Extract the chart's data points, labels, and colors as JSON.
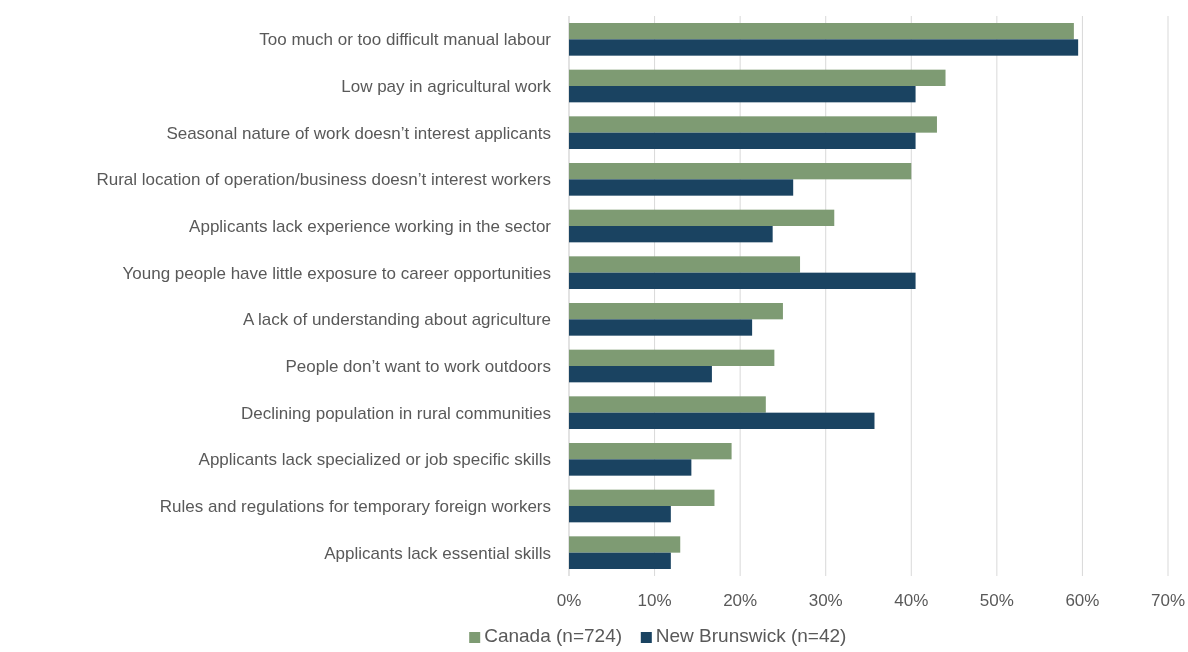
{
  "chart_data": {
    "type": "bar",
    "orientation": "horizontal",
    "categories": [
      "Too much or too difficult manual labour",
      "Low pay in agricultural work",
      "Seasonal nature of work doesn’t interest applicants",
      "Rural location of operation/business doesn’t interest workers",
      "Applicants lack experience working in the sector",
      "Young people have little exposure to career opportunities",
      "A lack of understanding about agriculture",
      "People don’t want to work outdoors",
      "Declining population in rural communities",
      "Applicants lack specialized or job specific skills",
      "Rules and regulations for temporary foreign workers",
      "Applicants lack essential skills"
    ],
    "series": [
      {
        "name": "Canada (n=724)",
        "color": "#7e9b73",
        "values": [
          59,
          44,
          43,
          40,
          31,
          27,
          25,
          24,
          23,
          19,
          17,
          13
        ]
      },
      {
        "name": "New Brunswick (n=42)",
        "color": "#1a4361",
        "values": [
          59.5,
          40.5,
          40.5,
          26.2,
          23.8,
          40.5,
          21.4,
          16.7,
          35.7,
          14.3,
          11.9,
          11.9
        ]
      }
    ],
    "xlim": [
      0,
      70
    ],
    "xticks": [
      {
        "value": 0,
        "label": "0%"
      },
      {
        "value": 10,
        "label": "10%"
      },
      {
        "value": 20,
        "label": "20%"
      },
      {
        "value": 30,
        "label": "30%"
      },
      {
        "value": 40,
        "label": "40%"
      },
      {
        "value": 50,
        "label": "50%"
      },
      {
        "value": 60,
        "label": "60%"
      },
      {
        "value": 70,
        "label": "70%"
      }
    ],
    "grid": "x",
    "legend": "bottom"
  }
}
